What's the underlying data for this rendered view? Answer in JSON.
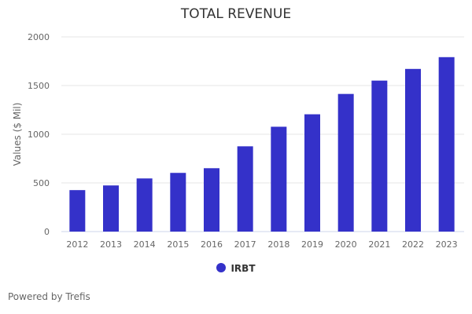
{
  "chart_data": {
    "type": "bar",
    "title": "TOTAL REVENUE",
    "xlabel": "",
    "ylabel": "Values ($ Mil)",
    "ylim": [
      0,
      2000
    ],
    "yticks": [
      0,
      500,
      1000,
      1500,
      2000
    ],
    "grid": true,
    "legend_placement": "bottom",
    "categories": [
      "2012",
      "2013",
      "2014",
      "2015",
      "2016",
      "2017",
      "2018",
      "2019",
      "2020",
      "2021",
      "2022",
      "2023"
    ],
    "series": [
      {
        "name": "IRBT",
        "color": "#3431c9",
        "values": [
          426,
          474,
          546,
          603,
          651,
          876,
          1077,
          1205,
          1414,
          1551,
          1671,
          1792
        ]
      }
    ]
  },
  "footer": {
    "credit": "Powered by Trefis"
  }
}
